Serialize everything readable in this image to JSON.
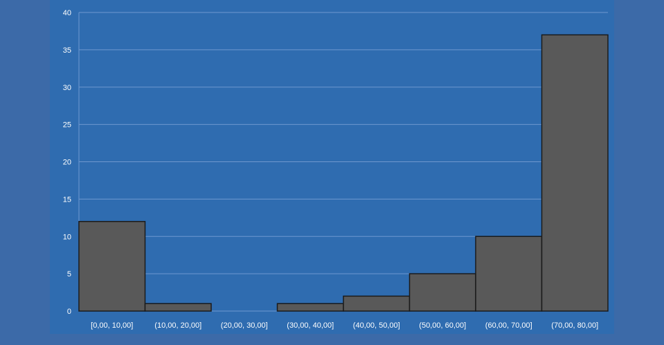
{
  "chart_data": {
    "type": "bar",
    "categories": [
      "[0,00, 10,00]",
      "(10,00, 20,00]",
      "(20,00, 30,00]",
      "(30,00, 40,00]",
      "(40,00, 50,00]",
      "(50,00, 60,00]",
      "(60,00, 70,00]",
      "(70,00, 80,00]"
    ],
    "values": [
      12,
      1,
      0,
      1,
      2,
      5,
      10,
      37
    ],
    "title": "",
    "xlabel": "",
    "ylabel": "",
    "ylim": [
      0,
      40
    ],
    "yticks": [
      0,
      5,
      10,
      15,
      20,
      25,
      30,
      35,
      40
    ],
    "grid": true,
    "legend": "none",
    "colors": {
      "bar_fill": "#595959",
      "bar_stroke": "#1a1a1a",
      "background": "#2f6cb0",
      "outer_background": "#3c6aa8",
      "gridline": "#6f98cf",
      "text": "#ffffff"
    }
  }
}
